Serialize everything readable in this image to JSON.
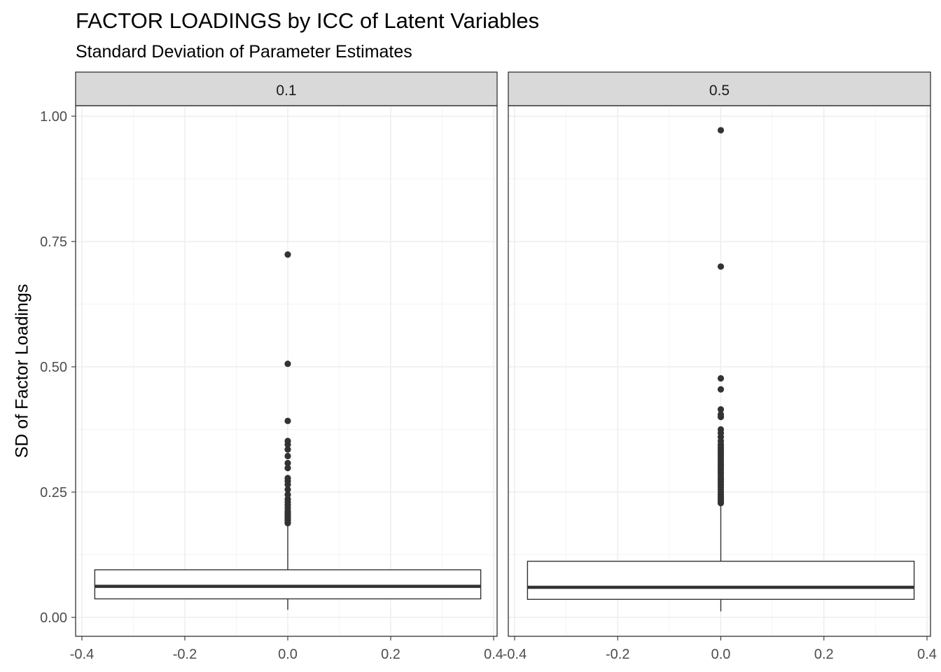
{
  "title": "FACTOR LOADINGS by ICC of Latent Variables",
  "subtitle": "Standard Deviation of Parameter Estimates",
  "colors": {
    "panel_border": "#333333",
    "strip_fill": "#d9d9d9",
    "grid_major": "#ebebeb",
    "grid_minor": "#f4f4f4",
    "box_line": "#333333",
    "box_fill": "#ffffff",
    "outlier": "#333333",
    "tick_text": "#4d4d4d"
  },
  "chart_data": {
    "type": "boxplot",
    "title": "FACTOR LOADINGS by ICC of Latent Variables",
    "subtitle": "Standard Deviation of Parameter Estimates",
    "xlabel": "",
    "ylabel": "SD of Factor Loadings",
    "facet_strip_labels": [
      "0.1",
      "0.5"
    ],
    "xlim": [
      -0.4,
      0.4
    ],
    "ylim": [
      0,
      1.0
    ],
    "x_ticks": [
      "-0.4",
      "-0.2",
      "0.0",
      "0.2",
      "0.4"
    ],
    "y_ticks": [
      "0.00",
      "0.25",
      "0.50",
      "0.75",
      "1.00"
    ],
    "grid": true,
    "panels": [
      {
        "facet": "0.1",
        "box": {
          "x": 0,
          "width": 0.75,
          "lower_whisker": 0.015,
          "q1": 0.037,
          "median": 0.062,
          "q3": 0.095,
          "upper_whisker": 0.185
        },
        "outliers": [
          0.188,
          0.19,
          0.193,
          0.196,
          0.2,
          0.204,
          0.208,
          0.212,
          0.218,
          0.224,
          0.23,
          0.236,
          0.245,
          0.255,
          0.265,
          0.272,
          0.278,
          0.298,
          0.308,
          0.322,
          0.335,
          0.345,
          0.352,
          0.392,
          0.506,
          0.724
        ]
      },
      {
        "facet": "0.5",
        "box": {
          "x": 0,
          "width": 0.75,
          "lower_whisker": 0.012,
          "q1": 0.036,
          "median": 0.06,
          "q3": 0.112,
          "upper_whisker": 0.225
        },
        "outliers": [
          0.228,
          0.232,
          0.236,
          0.24,
          0.245,
          0.25,
          0.255,
          0.26,
          0.265,
          0.27,
          0.275,
          0.28,
          0.285,
          0.29,
          0.295,
          0.3,
          0.305,
          0.31,
          0.315,
          0.32,
          0.325,
          0.33,
          0.335,
          0.34,
          0.345,
          0.352,
          0.36,
          0.368,
          0.375,
          0.4,
          0.405,
          0.415,
          0.455,
          0.477,
          0.7,
          0.972
        ]
      }
    ]
  }
}
